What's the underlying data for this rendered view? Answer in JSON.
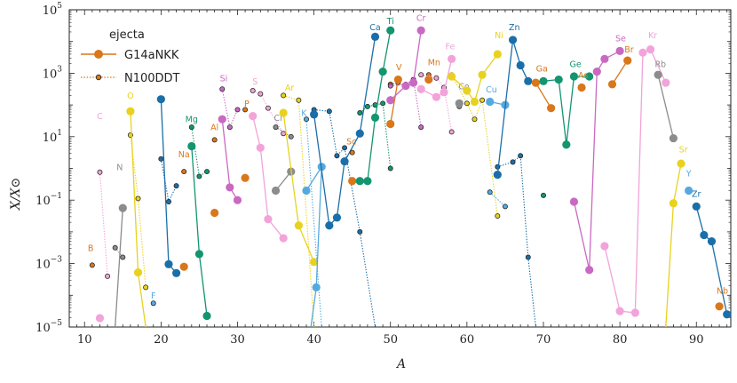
{
  "chart_data": {
    "type": "scatter",
    "xlabel": "A",
    "ylabel": "X/X⊙",
    "xlim": [
      8,
      94.5
    ],
    "ylim_log10": [
      -5,
      5
    ],
    "x_ticks": [
      10,
      20,
      30,
      40,
      50,
      60,
      70,
      80,
      90
    ],
    "y_ticks": [
      {
        "exp": -5,
        "label": "10−5"
      },
      {
        "exp": -3,
        "label": "10−3"
      },
      {
        "exp": -1,
        "label": "10−1"
      },
      {
        "exp": 1,
        "label": "101"
      },
      {
        "exp": 3,
        "label": "103"
      },
      {
        "exp": 5,
        "label": "105"
      }
    ],
    "legend": {
      "title": "ejecta",
      "entries": [
        {
          "series": "G14aNKK",
          "label": "G14aNKK",
          "style": "solid"
        },
        {
          "series": "N100DDT",
          "label": "N100DDT",
          "style": "dotted"
        }
      ]
    },
    "elements": [
      {
        "name": "C",
        "color": "#f2a3d9",
        "label_pos": [
          12,
          1.55
        ],
        "g14": [
          [
            12,
            -4.72
          ]
        ],
        "n100": [
          [
            12,
            -0.12
          ],
          [
            13,
            -3.4
          ]
        ]
      },
      {
        "name": "B",
        "color": "#d9771b",
        "label_pos": [
          10.8,
          -2.6
        ],
        "g14": [],
        "n100": [
          [
            11,
            -3.05
          ]
        ]
      },
      {
        "name": "N",
        "color": "#8c8c8c",
        "label_pos": [
          14.6,
          -0.05
        ],
        "g14": [
          [
            14,
            -5.0
          ],
          [
            15,
            -1.25
          ]
        ],
        "n100": [
          [
            14,
            -2.5
          ],
          [
            15,
            -2.8
          ]
        ]
      },
      {
        "name": "O",
        "color": "#e8d21f",
        "label_pos": [
          16,
          2.2
        ],
        "g14": [
          [
            16,
            1.8
          ],
          [
            17,
            -3.28
          ],
          [
            18,
            -5.0
          ]
        ],
        "n100": [
          [
            16,
            1.05
          ],
          [
            17,
            -0.95
          ],
          [
            18,
            -3.75
          ]
        ]
      },
      {
        "name": "F",
        "color": "#55a9de",
        "label_pos": [
          19,
          -4.1
        ],
        "g14": [],
        "n100": [
          [
            19,
            -4.25
          ]
        ]
      },
      {
        "name": "Ne",
        "color": "#1a6fa8",
        "label_pos": [
          20,
          2.6
        ],
        "g14": [
          [
            20,
            2.18
          ],
          [
            21,
            -3.02
          ],
          [
            22,
            -3.3
          ]
        ],
        "n100": [
          [
            20,
            0.3
          ],
          [
            21,
            -1.05
          ],
          [
            22,
            -0.55
          ]
        ]
      },
      {
        "name": "Na",
        "color": "#d9771b",
        "label_pos": [
          23,
          0.35
        ],
        "g14": [
          [
            23,
            -3.1
          ]
        ],
        "n100": [
          [
            23,
            -0.1
          ]
        ]
      },
      {
        "name": "Mg",
        "color": "#13956f",
        "label_pos": [
          24,
          1.45
        ],
        "g14": [
          [
            24,
            0.7
          ],
          [
            25,
            -2.7
          ],
          [
            26,
            -4.65
          ]
        ],
        "n100": [
          [
            24,
            1.3
          ],
          [
            25,
            -0.25
          ],
          [
            26,
            -0.1
          ]
        ]
      },
      {
        "name": "Al",
        "color": "#d9771b",
        "label_pos": [
          27,
          1.2
        ],
        "g14": [
          [
            27,
            -1.4
          ]
        ],
        "n100": [
          [
            27,
            0.9
          ]
        ]
      },
      {
        "name": "Si",
        "color": "#c969c2",
        "label_pos": [
          28.2,
          2.75
        ],
        "g14": [
          [
            28,
            1.55
          ],
          [
            29,
            -0.6
          ],
          [
            30,
            -1.0
          ]
        ],
        "n100": [
          [
            28,
            2.5
          ],
          [
            29,
            1.3
          ],
          [
            30,
            1.85
          ]
        ]
      },
      {
        "name": "P",
        "color": "#d9771b",
        "label_pos": [
          31.2,
          1.95
        ],
        "g14": [
          [
            31,
            -0.3
          ]
        ],
        "n100": [
          [
            31,
            1.85
          ]
        ]
      },
      {
        "name": "S",
        "color": "#f2a3d9",
        "label_pos": [
          32.3,
          2.65
        ],
        "g14": [
          [
            32,
            1.65
          ],
          [
            33,
            0.65
          ],
          [
            34,
            -1.6
          ],
          [
            36,
            -2.2
          ]
        ],
        "n100": [
          [
            32,
            2.45
          ],
          [
            33,
            2.35
          ],
          [
            34,
            1.9
          ],
          [
            36,
            1.1
          ]
        ]
      },
      {
        "name": "Cl",
        "color": "#8c8c8c",
        "label_pos": [
          35.3,
          1.5
        ],
        "g14": [
          [
            35,
            -0.7
          ],
          [
            37,
            -0.1
          ]
        ],
        "n100": [
          [
            35,
            1.3
          ],
          [
            37,
            1.0
          ]
        ]
      },
      {
        "name": "Ar",
        "color": "#e8d21f",
        "label_pos": [
          36.8,
          2.45
        ],
        "g14": [
          [
            36,
            1.75
          ],
          [
            38,
            -1.8
          ],
          [
            40,
            -2.95
          ]
        ],
        "n100": [
          [
            36,
            2.3
          ],
          [
            38,
            2.15
          ],
          [
            40,
            -5.0
          ]
        ]
      },
      {
        "name": "K",
        "color": "#55a9de",
        "label_pos": [
          38.7,
          1.65
        ],
        "g14": [
          [
            39,
            -0.7
          ],
          [
            41,
            0.05
          ],
          [
            40.3,
            -3.75
          ],
          [
            39.6,
            -5.0
          ]
        ],
        "n100": [
          [
            39,
            1.55
          ],
          [
            41,
            -5.0
          ]
        ]
      },
      {
        "name": "Ca",
        "color": "#1a6fa8",
        "label_pos": [
          48,
          4.35
        ],
        "g14": [
          [
            40,
            1.7
          ],
          [
            42,
            -1.8
          ],
          [
            43,
            -1.55
          ],
          [
            44,
            0.22
          ],
          [
            46,
            1.1
          ],
          [
            48,
            4.15
          ]
        ],
        "n100": [
          [
            40,
            1.85
          ],
          [
            42,
            1.8
          ],
          [
            43,
            0.4
          ],
          [
            44,
            0.65
          ],
          [
            46,
            -2.0
          ],
          [
            48,
            -5.0
          ]
        ]
      },
      {
        "name": "Sc",
        "color": "#d9771b",
        "label_pos": [
          44.9,
          0.75
        ],
        "g14": [
          [
            45,
            -0.4
          ]
        ],
        "n100": [
          [
            45,
            0.5
          ]
        ]
      },
      {
        "name": "Ti",
        "color": "#13956f",
        "label_pos": [
          50,
          4.55
        ],
        "g14": [
          [
            46,
            -0.4
          ],
          [
            47,
            -0.4
          ],
          [
            48,
            1.6
          ],
          [
            49,
            3.05
          ],
          [
            50,
            4.35
          ]
        ],
        "n100": [
          [
            46,
            1.75
          ],
          [
            47,
            1.95
          ],
          [
            48,
            2.0
          ],
          [
            49,
            2.05
          ],
          [
            50,
            0.0
          ]
        ]
      },
      {
        "name": "V",
        "color": "#d9771b",
        "label_pos": [
          51.1,
          3.1
        ],
        "g14": [
          [
            50,
            1.4
          ],
          [
            51,
            2.8
          ]
        ],
        "n100": [
          [
            50,
            2.65
          ],
          [
            51,
            2.7
          ]
        ]
      },
      {
        "name": "Cr",
        "color": "#c969c2",
        "label_pos": [
          54,
          4.65
        ],
        "g14": [
          [
            50,
            2.15
          ],
          [
            52,
            2.6
          ],
          [
            53,
            2.7
          ],
          [
            54,
            4.35
          ]
        ],
        "n100": [
          [
            50,
            2.6
          ],
          [
            52,
            2.65
          ],
          [
            53,
            2.8
          ],
          [
            54,
            1.3
          ]
        ]
      },
      {
        "name": "Mn",
        "color": "#d9771b",
        "label_pos": [
          55.7,
          3.25
        ],
        "g14": [
          [
            55,
            2.8
          ]
        ],
        "n100": [
          [
            55,
            2.95
          ]
        ]
      },
      {
        "name": "Fe",
        "color": "#f2a3d9",
        "label_pos": [
          57.8,
          3.75
        ],
        "g14": [
          [
            54,
            2.5
          ],
          [
            56,
            2.25
          ],
          [
            57,
            2.4
          ],
          [
            58,
            3.45
          ]
        ],
        "n100": [
          [
            54,
            2.95
          ],
          [
            56,
            2.85
          ],
          [
            57,
            2.55
          ],
          [
            58,
            1.15
          ]
        ]
      },
      {
        "name": "Co",
        "color": "#8c8c8c",
        "label_pos": [
          59.6,
          2.5
        ],
        "g14": [
          [
            59,
            2.05
          ]
        ],
        "n100": [
          [
            59,
            1.95
          ]
        ]
      },
      {
        "name": "Ni",
        "color": "#e8d21f",
        "label_pos": [
          64.2,
          4.1
        ],
        "g14": [
          [
            58,
            2.9
          ],
          [
            60,
            2.45
          ],
          [
            61,
            2.1
          ],
          [
            62,
            2.95
          ],
          [
            64,
            3.6
          ]
        ],
        "n100": [
          [
            58,
            2.95
          ],
          [
            60,
            2.05
          ],
          [
            61,
            1.55
          ],
          [
            62,
            2.15
          ],
          [
            64,
            -1.5
          ]
        ]
      },
      {
        "name": "Cu",
        "color": "#55a9de",
        "label_pos": [
          63.2,
          2.4
        ],
        "g14": [
          [
            63,
            2.1
          ],
          [
            65,
            2.0
          ]
        ],
        "n100": [
          [
            63,
            -0.75
          ],
          [
            65,
            -1.2
          ]
        ]
      },
      {
        "name": "Zn",
        "color": "#1a6fa8",
        "label_pos": [
          66.2,
          4.35
        ],
        "g14": [
          [
            64,
            -0.2
          ],
          [
            66,
            4.05
          ],
          [
            67,
            3.25
          ],
          [
            68,
            2.75
          ]
        ],
        "n100": [
          [
            64,
            0.05
          ],
          [
            66,
            0.2
          ],
          [
            67,
            0.4
          ],
          [
            68,
            -2.8
          ],
          [
            69,
            -5.0
          ]
        ]
      },
      {
        "name": "Ga",
        "color": "#d9771b",
        "label_pos": [
          69.8,
          3.05
        ],
        "g14": [
          [
            69,
            2.7
          ],
          [
            71,
            1.9
          ]
        ],
        "n100": []
      },
      {
        "name": "Ge",
        "color": "#13956f",
        "label_pos": [
          74.2,
          3.2
        ],
        "g14": [
          [
            70,
            2.75
          ],
          [
            72,
            2.8
          ],
          [
            73,
            0.75
          ],
          [
            74,
            2.9
          ],
          [
            76,
            2.9
          ]
        ],
        "n100": [
          [
            70,
            -0.85
          ]
        ]
      },
      {
        "name": "As",
        "color": "#d9771b",
        "label_pos": [
          75.2,
          2.85
        ],
        "g14": [
          [
            75,
            2.55
          ]
        ],
        "n100": []
      },
      {
        "name": "Se",
        "color": "#c969c2",
        "label_pos": [
          80.1,
          4.0
        ],
        "g14": [
          [
            74,
            -1.05
          ],
          [
            76,
            -3.2
          ],
          [
            77,
            3.05
          ],
          [
            78,
            3.45
          ],
          [
            80,
            3.7
          ]
        ],
        "n100": []
      },
      {
        "name": "Br",
        "color": "#d9771b",
        "label_pos": [
          81.2,
          3.65
        ],
        "g14": [
          [
            79,
            2.65
          ],
          [
            81,
            3.4
          ]
        ],
        "n100": []
      },
      {
        "name": "Kr",
        "color": "#f2a3d9",
        "label_pos": [
          84.3,
          4.1
        ],
        "g14": [
          [
            78,
            -2.45
          ],
          [
            80,
            -4.5
          ],
          [
            82,
            -4.55
          ],
          [
            83,
            3.65
          ],
          [
            84,
            3.75
          ],
          [
            86,
            2.7
          ]
        ],
        "n100": []
      },
      {
        "name": "Rb",
        "color": "#8c8c8c",
        "label_pos": [
          85.3,
          3.2
        ],
        "g14": [
          [
            85,
            2.95
          ],
          [
            87,
            0.95
          ]
        ],
        "n100": []
      },
      {
        "name": "Sr",
        "color": "#e8d21f",
        "label_pos": [
          88.3,
          0.5
        ],
        "g14": [
          [
            86,
            -5.0
          ],
          [
            87,
            -1.1
          ],
          [
            88,
            0.15
          ]
        ],
        "n100": []
      },
      {
        "name": "Y",
        "color": "#55a9de",
        "label_pos": [
          89.0,
          -0.25
        ],
        "g14": [
          [
            89,
            -0.7
          ]
        ],
        "n100": []
      },
      {
        "name": "Zr",
        "color": "#1a6fa8",
        "label_pos": [
          90.0,
          -0.9
        ],
        "g14": [
          [
            90,
            -1.2
          ],
          [
            91,
            -2.1
          ],
          [
            92,
            -2.3
          ],
          [
            94,
            -4.6
          ]
        ],
        "n100": []
      },
      {
        "name": "Nb",
        "color": "#d9771b",
        "label_pos": [
          93.4,
          -3.95
        ],
        "g14": [
          [
            93,
            -4.35
          ]
        ],
        "n100": []
      }
    ]
  }
}
